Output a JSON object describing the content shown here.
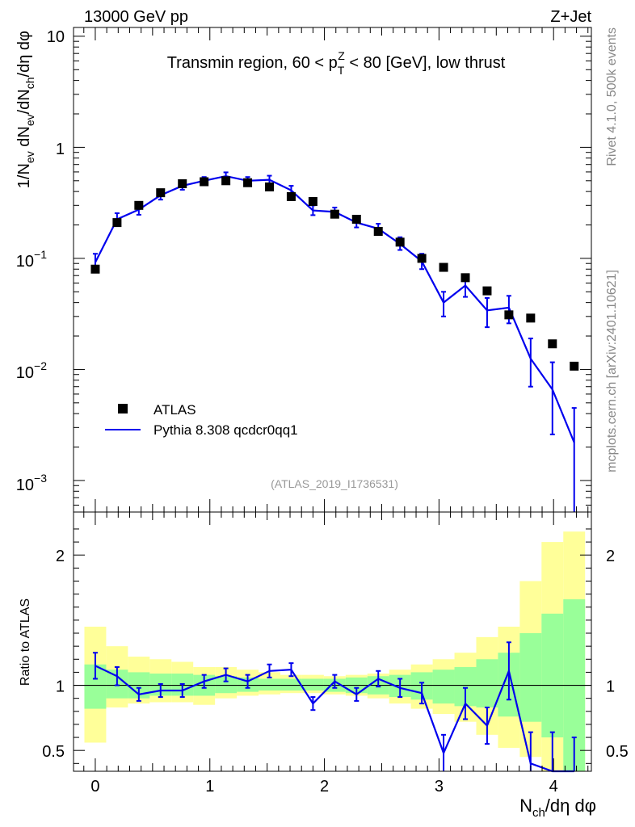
{
  "header": {
    "left": "13000 GeV pp",
    "right": "Z+Jet"
  },
  "side_labels": {
    "top": "Rivet 4.1.0,  500k events",
    "bottom": "mcplots.cern.ch [arXiv:2401.10621]"
  },
  "chart_data": [
    {
      "type": "scatter",
      "panel": "main",
      "title": "Transmin region, 60 < pTZ < 80 [GeV], low thrust",
      "title_parts": [
        "Transmin region, 60 < p",
        "T",
        "Z",
        " < 80 [GeV], low thrust"
      ],
      "ylabel": "1/N_ev dN_ev/dN_ch/dη dφ",
      "ylabel_parts": [
        "1/N",
        "ev",
        " dN",
        "ev",
        "/dN",
        "ch",
        "/dη dφ"
      ],
      "yscale": "log",
      "ylim": [
        0.00052,
        12
      ],
      "xlim": [
        -0.19,
        4.33
      ],
      "ytick_labels": [
        "10",
        "1",
        "10",
        "−1",
        "10",
        "−2",
        "10",
        "−3"
      ],
      "ytick_values": [
        10,
        1,
        0.1,
        0.01,
        0.001
      ],
      "watermark": "(ATLAS_2019_I1736531)",
      "legend": {
        "position": "lower-left",
        "entries": [
          "ATLAS",
          "Pythia 8.308 qcdcr0qq1"
        ]
      },
      "series": [
        {
          "name": "ATLAS",
          "style": "markers",
          "color": "#000000",
          "x": [
            0.0,
            0.19,
            0.38,
            0.57,
            0.76,
            0.95,
            1.14,
            1.33,
            1.52,
            1.71,
            1.9,
            2.09,
            2.28,
            2.47,
            2.66,
            2.85,
            3.04,
            3.23,
            3.42,
            3.61,
            3.8,
            3.99,
            4.18
          ],
          "y": [
            0.08,
            0.21,
            0.3,
            0.39,
            0.47,
            0.49,
            0.5,
            0.48,
            0.44,
            0.36,
            0.325,
            0.25,
            0.225,
            0.175,
            0.14,
            0.1,
            0.083,
            0.067,
            0.051,
            0.031,
            0.029,
            0.017,
            0.0107
          ]
        },
        {
          "name": "Pythia 8.308 qcdcr0qq1",
          "style": "line+errorbars",
          "color": "#0000ee",
          "x": [
            0.0,
            0.19,
            0.38,
            0.57,
            0.76,
            0.95,
            1.14,
            1.33,
            1.52,
            1.71,
            1.9,
            2.09,
            2.28,
            2.47,
            2.66,
            2.85,
            3.04,
            3.23,
            3.42,
            3.61,
            3.8,
            3.99,
            4.18
          ],
          "y": [
            0.092,
            0.225,
            0.275,
            0.37,
            0.45,
            0.5,
            0.55,
            0.5,
            0.51,
            0.41,
            0.27,
            0.262,
            0.21,
            0.185,
            0.135,
            0.094,
            0.04,
            0.057,
            0.034,
            0.036,
            0.0125,
            0.0066,
            0.0022
          ],
          "yerr_low": [
            0.012,
            0.025,
            0.028,
            0.032,
            0.035,
            0.035,
            0.04,
            0.04,
            0.04,
            0.035,
            0.025,
            0.02,
            0.02,
            0.018,
            0.016,
            0.014,
            0.01,
            0.012,
            0.01,
            0.01,
            0.0055,
            0.004,
            0.0018
          ],
          "yerr_high": [
            0.018,
            0.03,
            0.03,
            0.035,
            0.04,
            0.04,
            0.045,
            0.04,
            0.045,
            0.04,
            0.03,
            0.025,
            0.02,
            0.02,
            0.02,
            0.016,
            0.01,
            0.012,
            0.01,
            0.01,
            0.0065,
            0.005,
            0.0023
          ]
        }
      ]
    },
    {
      "type": "line",
      "panel": "ratio",
      "ylabel": "Ratio to ATLAS",
      "xlabel": "N_ch/dη dφ",
      "xlabel_parts": [
        "N",
        "ch",
        "/dη dφ"
      ],
      "ylim": [
        0.34,
        2.33
      ],
      "xlim": [
        -0.19,
        4.33
      ],
      "yticks": [
        0.5,
        1,
        2
      ],
      "ytick_labels": [
        "0.5",
        "1",
        "2"
      ],
      "xticks": [
        0,
        1,
        2,
        3,
        4
      ],
      "xtick_labels": [
        "0",
        "1",
        "2",
        "3",
        "4"
      ],
      "bin_edges": [
        -0.095,
        0.095,
        0.285,
        0.475,
        0.665,
        0.855,
        1.045,
        1.235,
        1.425,
        1.615,
        1.805,
        1.995,
        2.185,
        2.375,
        2.565,
        2.755,
        2.945,
        3.135,
        3.325,
        3.515,
        3.705,
        3.895,
        4.085,
        4.275
      ],
      "band_total": {
        "name": "total uncertainty",
        "color": "#ffff99",
        "low": [
          0.56,
          0.83,
          0.86,
          0.87,
          0.87,
          0.85,
          0.9,
          0.92,
          0.93,
          0.94,
          0.94,
          0.93,
          0.92,
          0.9,
          0.86,
          0.82,
          0.78,
          0.72,
          0.62,
          0.52,
          0.45,
          0.3,
          0.2
        ],
        "high": [
          1.45,
          1.3,
          1.22,
          1.2,
          1.18,
          1.14,
          1.14,
          1.12,
          1.1,
          1.08,
          1.08,
          1.07,
          1.08,
          1.09,
          1.12,
          1.16,
          1.2,
          1.25,
          1.37,
          1.45,
          1.8,
          2.1,
          2.18
        ]
      },
      "band_stat": {
        "name": "statistical uncertainty",
        "color": "#99ff99",
        "low": [
          0.82,
          0.9,
          0.9,
          0.92,
          0.92,
          0.92,
          0.94,
          0.95,
          0.96,
          0.96,
          0.96,
          0.95,
          0.94,
          0.93,
          0.91,
          0.89,
          0.86,
          0.84,
          0.83,
          0.76,
          0.72,
          0.6,
          0.3
        ],
        "high": [
          1.16,
          1.12,
          1.1,
          1.09,
          1.09,
          1.08,
          1.07,
          1.06,
          1.05,
          1.05,
          1.05,
          1.05,
          1.06,
          1.07,
          1.08,
          1.1,
          1.12,
          1.14,
          1.2,
          1.25,
          1.4,
          1.55,
          1.66
        ]
      },
      "series": [
        {
          "name": "Pythia 8.308 qcdcr0qq1 / ATLAS",
          "color": "#0000ee",
          "x": [
            0.0,
            0.19,
            0.38,
            0.57,
            0.76,
            0.95,
            1.14,
            1.33,
            1.52,
            1.71,
            1.9,
            2.09,
            2.28,
            2.47,
            2.66,
            2.85,
            3.04,
            3.23,
            3.42,
            3.61,
            3.8,
            3.99,
            4.18
          ],
          "y": [
            1.15,
            1.07,
            0.93,
            0.96,
            0.96,
            1.03,
            1.08,
            1.03,
            1.11,
            1.12,
            0.86,
            1.03,
            0.93,
            1.05,
            0.98,
            0.94,
            0.48,
            0.86,
            0.69,
            1.11,
            0.4,
            0.34,
            0.3
          ],
          "yerr": [
            0.1,
            0.07,
            0.05,
            0.05,
            0.05,
            0.05,
            0.05,
            0.05,
            0.05,
            0.05,
            0.05,
            0.05,
            0.05,
            0.06,
            0.07,
            0.08,
            0.14,
            0.12,
            0.14,
            0.22,
            0.24,
            0.3,
            0.3
          ]
        }
      ]
    }
  ]
}
